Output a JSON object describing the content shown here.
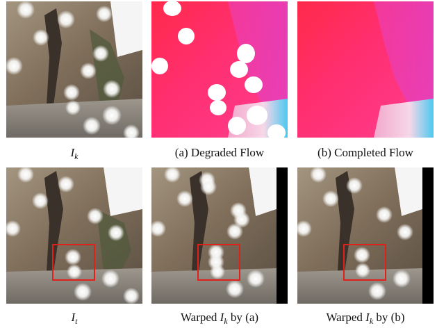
{
  "captions": {
    "r1c1": {
      "var": "I",
      "sub": "k"
    },
    "r1c2": "(a) Degraded Flow",
    "r1c3": "(b) Completed Flow",
    "r2c1": {
      "var": "I",
      "sub": "t"
    },
    "r2c2": {
      "pre": "Warped ",
      "var": "I",
      "sub": "k",
      "post": " by (a)"
    },
    "r2c3": {
      "pre": "Warped ",
      "var": "I",
      "sub": "k",
      "post": " by (b)"
    }
  },
  "colors": {
    "highlight_box": "#e0201a",
    "flow_pink": "#ff2a7a",
    "flow_magenta": "#e63cc8",
    "flow_red": "#ff2a4a",
    "flow_cyan": "#4cc8f0",
    "rock": "#8b7a64",
    "ground": "#8f8981"
  },
  "icons": {
    "r1c1": "cliff-photo-with-occlusion-blobs",
    "r1c2": "degraded-optical-flow-map",
    "r1c3": "completed-optical-flow-map",
    "r2c1": "target-frame-photo",
    "r2c2": "warped-frame-degraded",
    "r2c3": "warped-frame-completed"
  }
}
